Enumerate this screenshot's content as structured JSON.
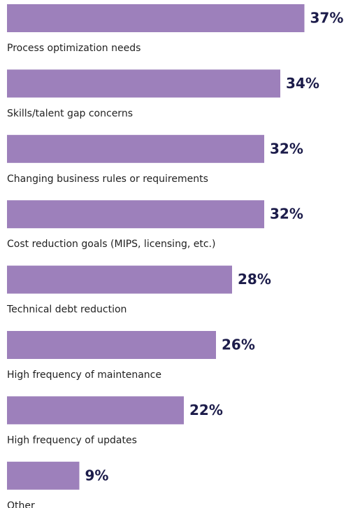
{
  "chart_data": {
    "type": "bar",
    "orientation": "horizontal",
    "categories": [
      "Process optimization needs",
      "Skills/talent gap concerns",
      "Changing business rules or requirements",
      "Cost reduction goals (MIPS, licensing, etc.)",
      "Technical debt reduction",
      "High frequency of maintenance",
      "High frequency of updates",
      "Other"
    ],
    "values": [
      37,
      34,
      32,
      32,
      28,
      26,
      22,
      9
    ],
    "value_labels": [
      "37%",
      "34%",
      "32%",
      "32%",
      "28%",
      "26%",
      "22%",
      "9%"
    ],
    "color": "#9d80bb"
  }
}
